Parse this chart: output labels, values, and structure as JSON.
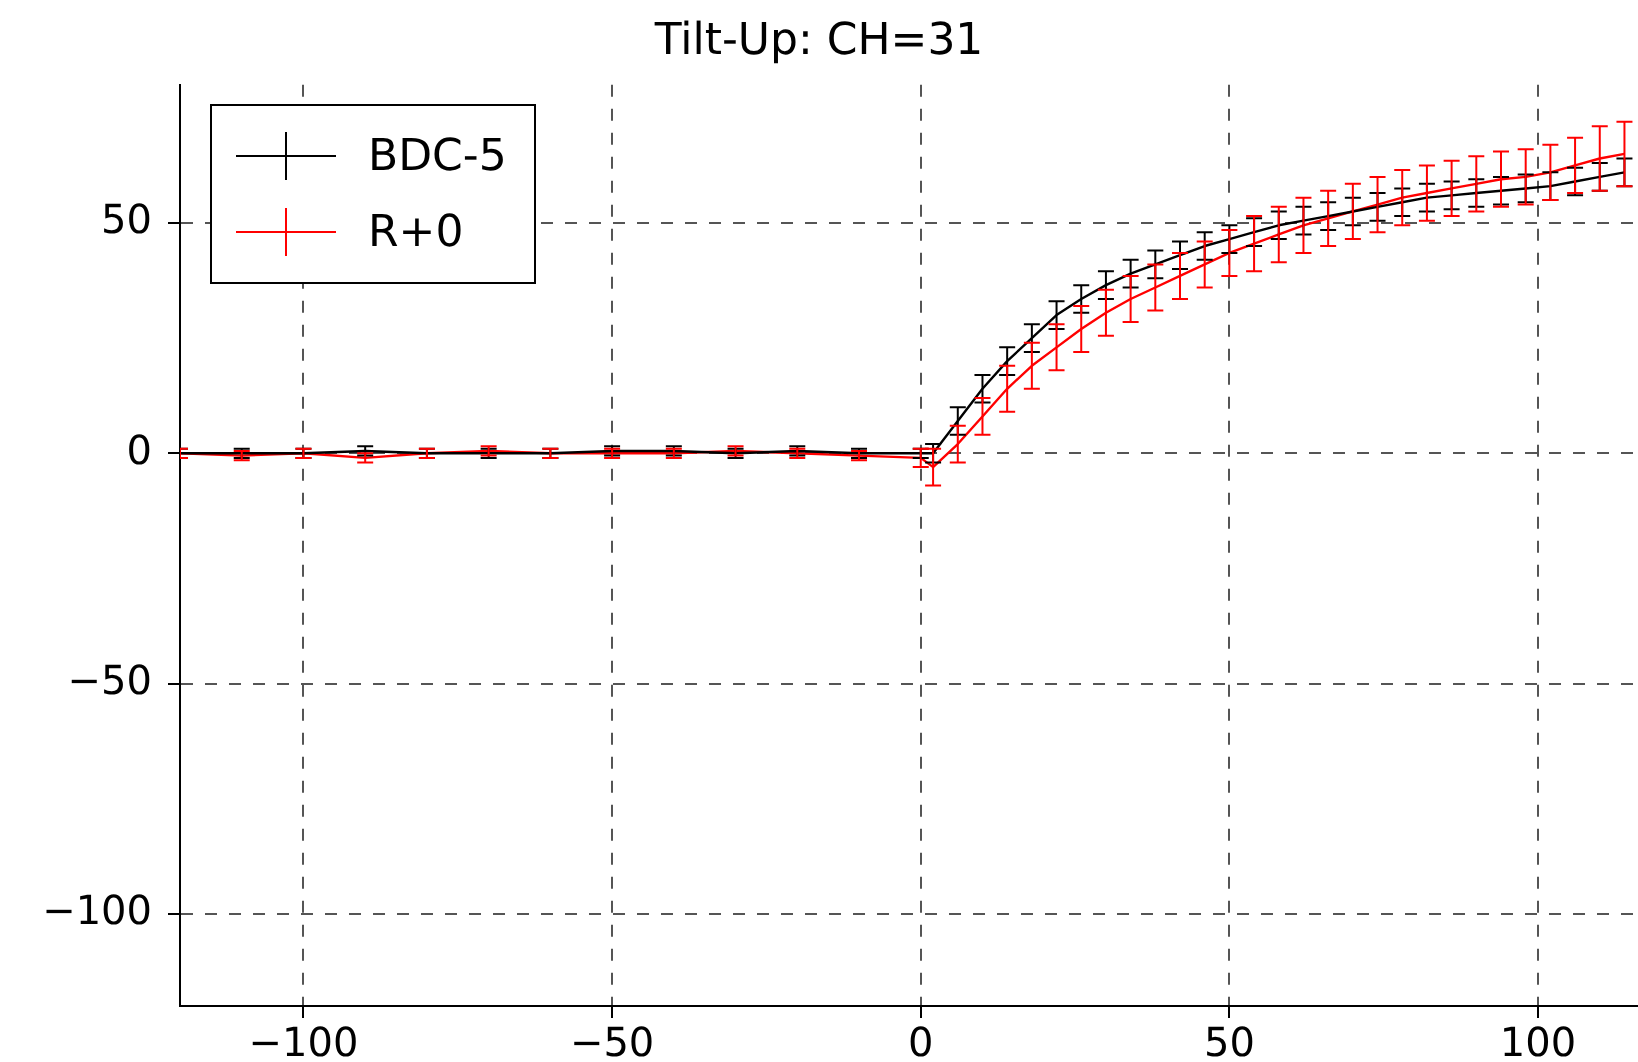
{
  "chart_data": {
    "type": "line",
    "title": "Tilt-Up: CH=31",
    "x": [
      -120,
      -110,
      -100,
      -90,
      -80,
      -70,
      -60,
      -50,
      -40,
      -30,
      -20,
      -10,
      0,
      2,
      6,
      10,
      14,
      18,
      22,
      26,
      30,
      34,
      38,
      42,
      46,
      50,
      54,
      58,
      62,
      66,
      70,
      74,
      78,
      82,
      86,
      90,
      94,
      98,
      102,
      106,
      110,
      114
    ],
    "series": [
      {
        "name": "BDC-5",
        "color": "#000000",
        "values": [
          0,
          0,
          0,
          0.5,
          0,
          0,
          0,
          0.5,
          0.5,
          0,
          0.5,
          0,
          0,
          0,
          7,
          14,
          20,
          25,
          30,
          33.5,
          36.5,
          39,
          41,
          43,
          45,
          46.5,
          48,
          49.5,
          50.5,
          51.5,
          52.5,
          53.5,
          54.5,
          55.5,
          56,
          56.5,
          57,
          57.5,
          58,
          59,
          60,
          61
        ],
        "errors": [
          1,
          1,
          1,
          1,
          1,
          1,
          1,
          1,
          1,
          1,
          1,
          1,
          1,
          2,
          3,
          3,
          3,
          3,
          3,
          3,
          3,
          3,
          3,
          3,
          3,
          3,
          3,
          3,
          3,
          3,
          3,
          3,
          3,
          3,
          3,
          3,
          3,
          3,
          3,
          3,
          3,
          3
        ]
      },
      {
        "name": "R+0",
        "color": "#ff0000",
        "values": [
          0,
          -0.5,
          0,
          -1,
          0,
          0.5,
          0,
          0,
          0,
          0.5,
          0,
          -0.5,
          -1,
          -3,
          2,
          8,
          14,
          19,
          23,
          27,
          30.5,
          33.5,
          36,
          38.5,
          41,
          43.5,
          45.5,
          47.5,
          49.5,
          51,
          52.5,
          54,
          55.5,
          56.5,
          57.5,
          58.5,
          59.5,
          60,
          61,
          62.5,
          64,
          65
        ],
        "errors": [
          1,
          1,
          1,
          1,
          1,
          1,
          1,
          1,
          1,
          1,
          1,
          1,
          2,
          4,
          4,
          4,
          5,
          5,
          5,
          5,
          5,
          5,
          5,
          5,
          5,
          5,
          6,
          6,
          6,
          6,
          6,
          6,
          6,
          6,
          6,
          6,
          6,
          6,
          6,
          6,
          7,
          7
        ]
      }
    ],
    "xlim": [
      -120,
      116
    ],
    "xticks": [
      -100,
      -50,
      0,
      50,
      100
    ],
    "ylim": [
      -120,
      80
    ],
    "yticks": [
      -100,
      -50,
      0,
      50
    ],
    "grid": true,
    "legend": "top left",
    "marker": "none",
    "line_style": "solid"
  }
}
